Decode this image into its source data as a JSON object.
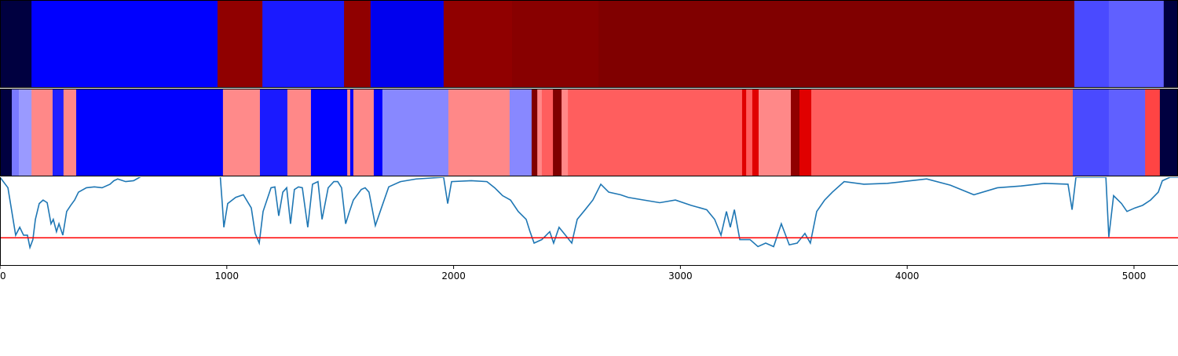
{
  "chart_data": {
    "type": "line",
    "xlim": [
      0,
      5194
    ],
    "xticks": [
      0,
      1000,
      2000,
      3000,
      4000,
      5000
    ],
    "ylim": [
      0,
      1
    ],
    "strips": [
      {
        "edges": [
          0,
          139,
          959,
          1157,
          1517,
          1634,
          1956,
          2258,
          2639,
          4737,
          4889,
          5131,
          5194
        ],
        "colors": [
          "#000040",
          "#0000ff",
          "#900000",
          "#1a1aff",
          "#900000",
          "#0000ee",
          "#900000",
          "#880000",
          "#800000",
          "#4a4aff",
          "#6060ff",
          "#000040"
        ]
      },
      {
        "edges": [
          0,
          52,
          83,
          139,
          232,
          280,
          336,
          983,
          1146,
          1267,
          1371,
          1531,
          1544,
          1558,
          1648,
          1686,
          1977,
          2247,
          2344,
          2369,
          2389,
          2438,
          2476,
          2504,
          3272,
          3290,
          3317,
          3345,
          3487,
          3525,
          3577,
          4730,
          4889,
          5049,
          5114,
          5194
        ],
        "colors": [
          "#000040",
          "#7a7aff",
          "#9a9aff",
          "#ff8888",
          "#2020ff",
          "#ff8888",
          "#0000ff",
          "#ff8a8a",
          "#1a1aff",
          "#ff8888",
          "#0000ff",
          "#ff8888",
          "#0000ff",
          "#ff8888",
          "#0000ff",
          "#8888ff",
          "#ff8888",
          "#8888ff",
          "#800000",
          "#ff8888",
          "#ff5e5e",
          "#800000",
          "#ff8888",
          "#ff5e5e",
          "#e00000",
          "#ff5e5e",
          "#e00000",
          "#ff8888",
          "#900000",
          "#e00000",
          "#ff5e5e",
          "#4a4aff",
          "#6060ff",
          "#ff4444",
          "#000040"
        ]
      }
    ],
    "series": [
      {
        "color": "#1f77b4",
        "x": [
          0,
          35,
          52,
          69,
          87,
          104,
          121,
          132,
          145,
          156,
          173,
          190,
          208,
          225,
          235,
          249,
          260,
          277,
          294,
          312,
          329,
          346,
          381,
          416,
          450,
          485,
          502,
          519,
          554,
          589,
          616,
          693,
          970,
          980,
          987,
          1004,
          1039,
          1073,
          1108,
          1125,
          1143,
          1160,
          1195,
          1212,
          1229,
          1247,
          1264,
          1281,
          1298,
          1316,
          1333,
          1357,
          1378,
          1402,
          1420,
          1447,
          1472,
          1489,
          1506,
          1524,
          1541,
          1558,
          1593,
          1610,
          1627,
          1655,
          1679,
          1714,
          1766,
          1835,
          1956,
          1974,
          1991,
          2078,
          2147,
          2181,
          2216,
          2251,
          2285,
          2320,
          2337,
          2355,
          2389,
          2424,
          2441,
          2465,
          2493,
          2521,
          2545,
          2580,
          2614,
          2649,
          2684,
          2736,
          2770,
          2839,
          2909,
          2978,
          3047,
          3116,
          3151,
          3179,
          3203,
          3220,
          3238,
          3262,
          3307,
          3342,
          3376,
          3411,
          3445,
          3480,
          3515,
          3549,
          3573,
          3601,
          3636,
          3670,
          3722,
          3809,
          3913,
          3982,
          4086,
          4190,
          4294,
          4398,
          4502,
          4605,
          4709,
          4727,
          4744,
          4876,
          4889,
          4910,
          4945,
          4969,
          5004,
          5038,
          5073,
          5107,
          5125,
          5159,
          5194
        ],
        "values": [
          1.0,
          0.88,
          0.61,
          0.34,
          0.43,
          0.34,
          0.34,
          0.2,
          0.29,
          0.52,
          0.7,
          0.74,
          0.71,
          0.47,
          0.52,
          0.38,
          0.47,
          0.34,
          0.61,
          0.68,
          0.74,
          0.83,
          0.88,
          0.89,
          0.88,
          0.92,
          0.96,
          0.98,
          0.95,
          0.96,
          1.0,
          1.1,
          1.05,
          0.7,
          0.43,
          0.7,
          0.77,
          0.8,
          0.65,
          0.36,
          0.25,
          0.61,
          0.88,
          0.89,
          0.56,
          0.83,
          0.88,
          0.47,
          0.86,
          0.89,
          0.88,
          0.43,
          0.92,
          0.95,
          0.52,
          0.88,
          0.95,
          0.95,
          0.88,
          0.47,
          0.61,
          0.74,
          0.86,
          0.88,
          0.83,
          0.45,
          0.63,
          0.89,
          0.95,
          0.98,
          1.0,
          0.7,
          0.95,
          0.96,
          0.95,
          0.88,
          0.79,
          0.74,
          0.61,
          0.52,
          0.38,
          0.25,
          0.29,
          0.38,
          0.25,
          0.43,
          0.34,
          0.25,
          0.52,
          0.63,
          0.74,
          0.92,
          0.83,
          0.8,
          0.77,
          0.74,
          0.71,
          0.74,
          0.68,
          0.63,
          0.52,
          0.34,
          0.61,
          0.43,
          0.63,
          0.29,
          0.29,
          0.21,
          0.25,
          0.21,
          0.47,
          0.23,
          0.25,
          0.36,
          0.25,
          0.61,
          0.74,
          0.83,
          0.95,
          0.92,
          0.93,
          0.95,
          0.98,
          0.91,
          0.8,
          0.88,
          0.9,
          0.93,
          0.92,
          0.63,
          1.0,
          1.0,
          0.32,
          0.79,
          0.7,
          0.61,
          0.65,
          0.68,
          0.74,
          0.83,
          0.96,
          1.0,
          1.0
        ]
      }
    ],
    "threshold": 0.31,
    "threshold_color": "#ff0000"
  }
}
